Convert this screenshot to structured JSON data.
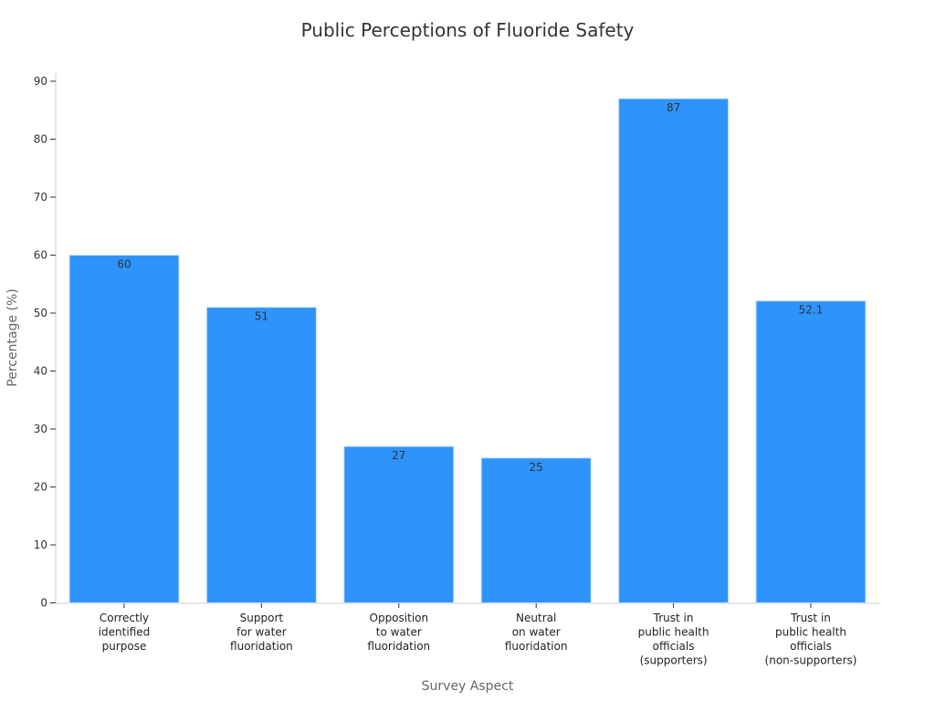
{
  "chart_data": {
    "type": "bar",
    "title": "Public Perceptions of Fluoride Safety",
    "xlabel": "Survey Aspect",
    "ylabel": "Percentage (%)",
    "categories": [
      [
        "Correctly",
        "identified",
        "purpose"
      ],
      [
        "Support",
        "for water",
        "fluoridation"
      ],
      [
        "Opposition",
        "to water",
        "fluoridation"
      ],
      [
        "Neutral",
        "on water",
        "fluoridation"
      ],
      [
        "Trust in",
        "public health",
        "officials",
        "(supporters)"
      ],
      [
        "Trust in",
        "public health",
        "officials",
        "(non-supporters)"
      ]
    ],
    "values": [
      60,
      51,
      27,
      25,
      87,
      52.1
    ],
    "data_labels": [
      "60",
      "51",
      "27",
      "25",
      "87",
      "52.1"
    ],
    "ylim": [
      0,
      90
    ],
    "yticks": [
      0,
      10,
      20,
      30,
      40,
      50,
      60,
      70,
      80,
      90
    ],
    "grid": false,
    "bar_color": "#2e93fa"
  }
}
